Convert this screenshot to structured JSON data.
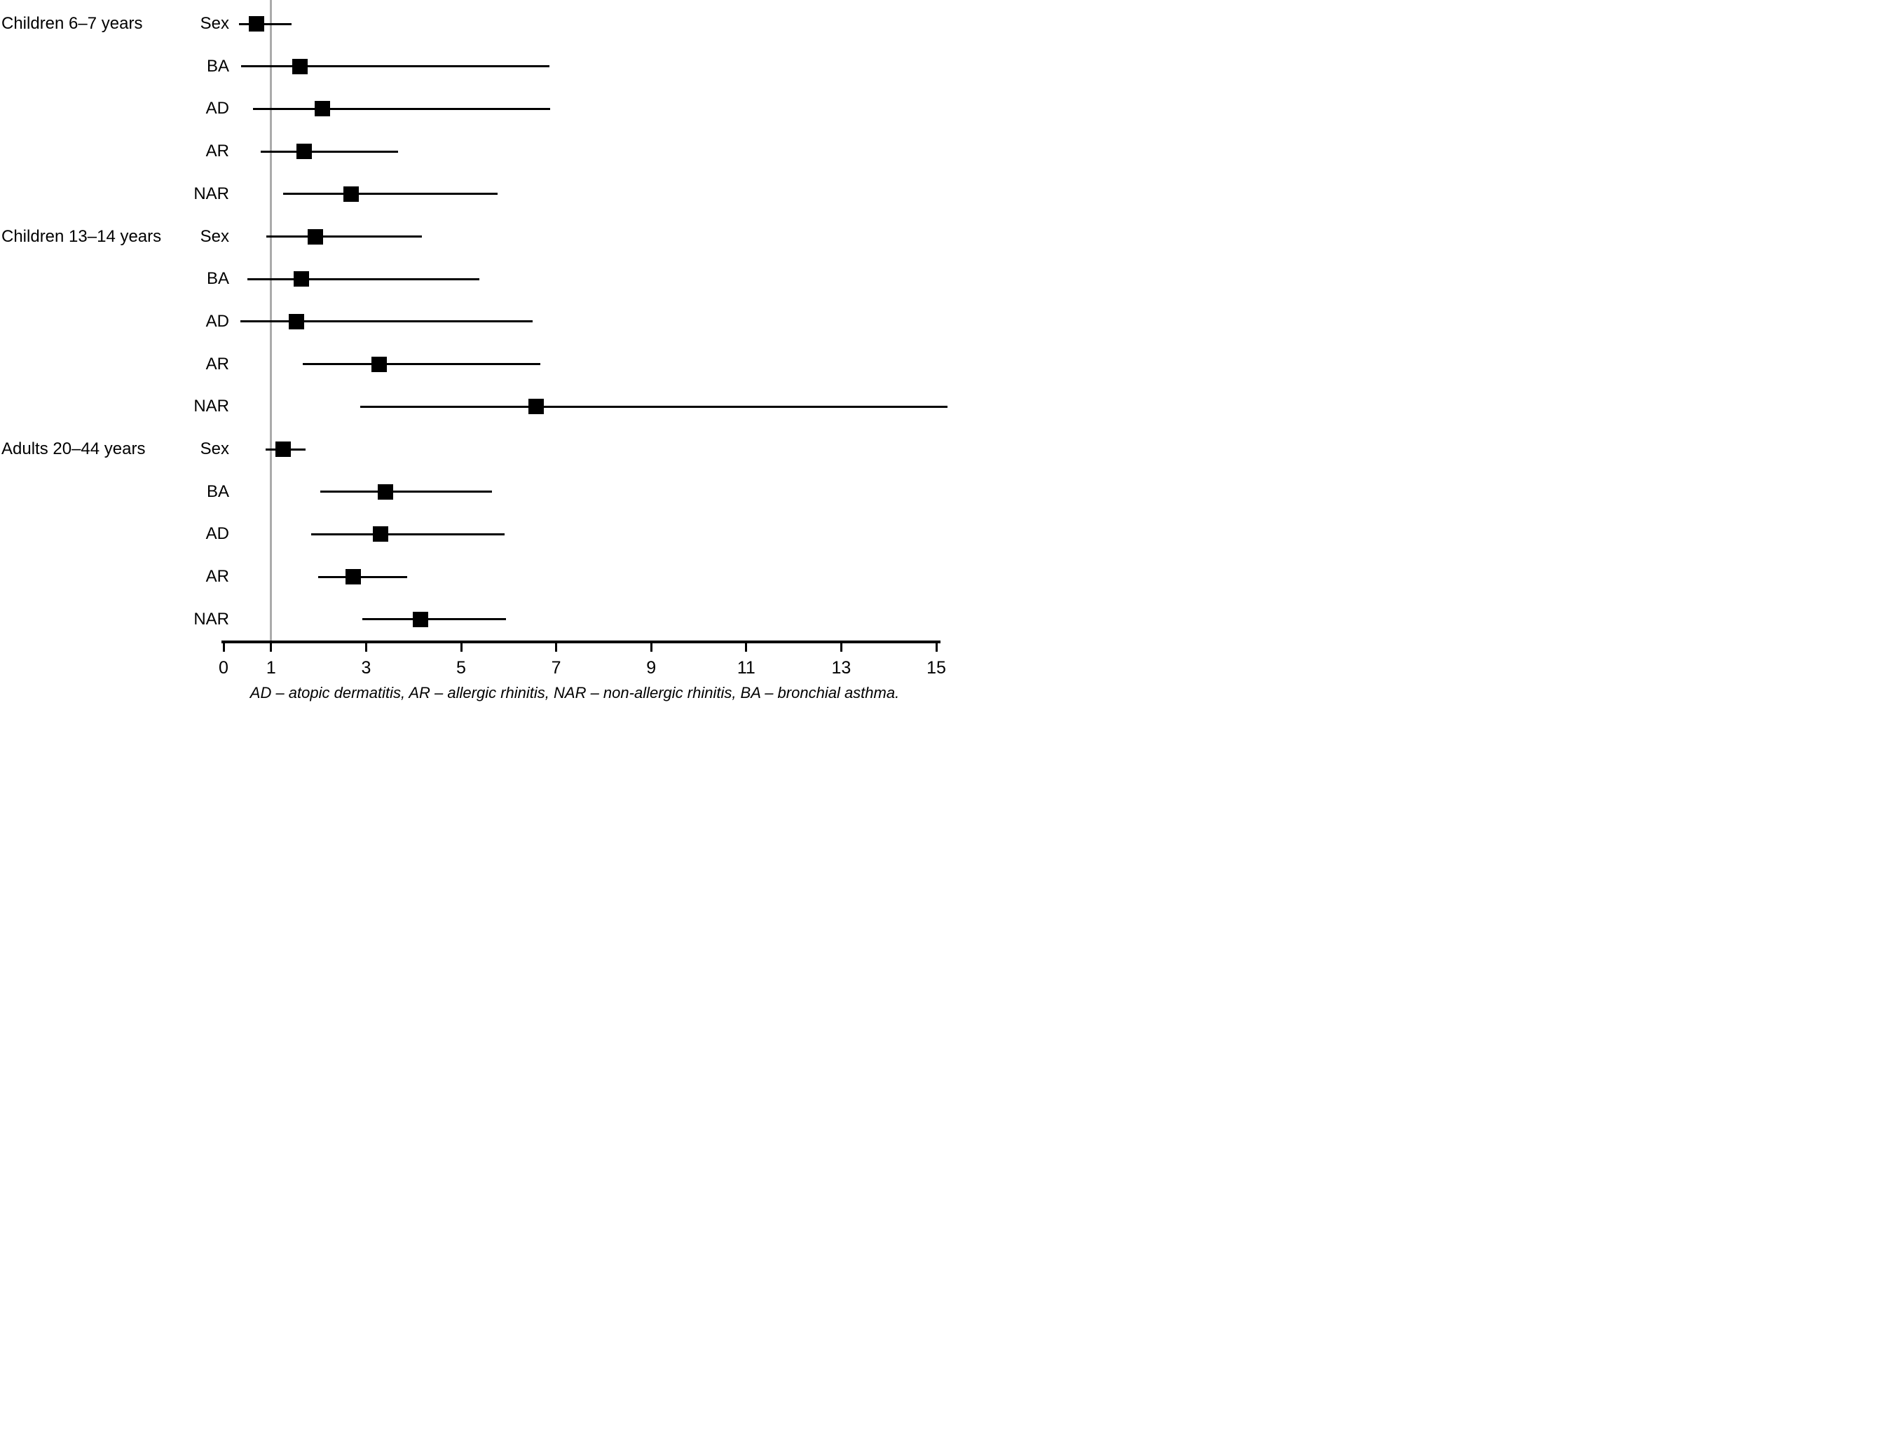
{
  "figure": {
    "footnote": "AD – atopic dermatitis, AR – allergic rhinitis, NAR – non-allergic rhinitis, BA – bronchial asthma."
  },
  "chart_data": {
    "type": "scatter",
    "variant": "forest-plot",
    "title": "",
    "xlabel": "",
    "ylabel": "",
    "xlim": [
      0,
      15.25
    ],
    "x_ticks": [
      "0",
      "1",
      "3",
      "5",
      "7",
      "9",
      "11",
      "13",
      "15"
    ],
    "x_tick_values": [
      0,
      1,
      3,
      5,
      7,
      9,
      11,
      13,
      15
    ],
    "reference_line_x": 1,
    "grid": false,
    "legend_position": "none",
    "marker": "filled-square",
    "colors": {
      "marker": "#000000",
      "ci_line": "#000000",
      "reference_line": "#ababab",
      "axis": "#000000",
      "background": "#ffffff"
    },
    "groups": [
      {
        "label": "Children 6–7 years",
        "rows": [
          {
            "label": "Sex",
            "or": 0.69,
            "ci_low": 0.32,
            "ci_high": 1.43,
            "clipped": false
          },
          {
            "label": "BA",
            "or": 1.61,
            "ci_low": 0.37,
            "ci_high": 6.86,
            "clipped": false
          },
          {
            "label": "AD",
            "or": 2.08,
            "ci_low": 0.62,
            "ci_high": 6.88,
            "clipped": false
          },
          {
            "label": "AR",
            "or": 1.69,
            "ci_low": 0.78,
            "ci_high": 3.67,
            "clipped": false
          },
          {
            "label": "NAR",
            "or": 2.69,
            "ci_low": 1.26,
            "ci_high": 5.76,
            "clipped": false
          }
        ]
      },
      {
        "label": "Children 13–14 years",
        "rows": [
          {
            "label": "Sex",
            "or": 1.93,
            "ci_low": 0.9,
            "ci_high": 4.17,
            "clipped": false
          },
          {
            "label": "BA",
            "or": 1.63,
            "ci_low": 0.5,
            "ci_high": 5.39,
            "clipped": false
          },
          {
            "label": "AD",
            "or": 1.54,
            "ci_low": 0.35,
            "ci_high": 6.51,
            "clipped": false
          },
          {
            "label": "AR",
            "or": 3.28,
            "ci_low": 1.66,
            "ci_high": 6.67,
            "clipped": false
          },
          {
            "label": "NAR",
            "or": 6.58,
            "ci_low": 2.87,
            "ci_high": 15.25,
            "clipped": true
          }
        ]
      },
      {
        "label": "Adults 20–44 years",
        "rows": [
          {
            "label": "Sex",
            "or": 1.25,
            "ci_low": 0.88,
            "ci_high": 1.73,
            "clipped": false
          },
          {
            "label": "BA",
            "or": 3.4,
            "ci_low": 2.03,
            "ci_high": 5.65,
            "clipped": false
          },
          {
            "label": "AD",
            "or": 3.3,
            "ci_low": 1.84,
            "ci_high": 5.91,
            "clipped": false
          },
          {
            "label": "AR",
            "or": 2.73,
            "ci_low": 1.99,
            "ci_high": 3.86,
            "clipped": false
          },
          {
            "label": "NAR",
            "or": 4.14,
            "ci_low": 2.92,
            "ci_high": 5.94,
            "clipped": false
          }
        ]
      }
    ]
  }
}
